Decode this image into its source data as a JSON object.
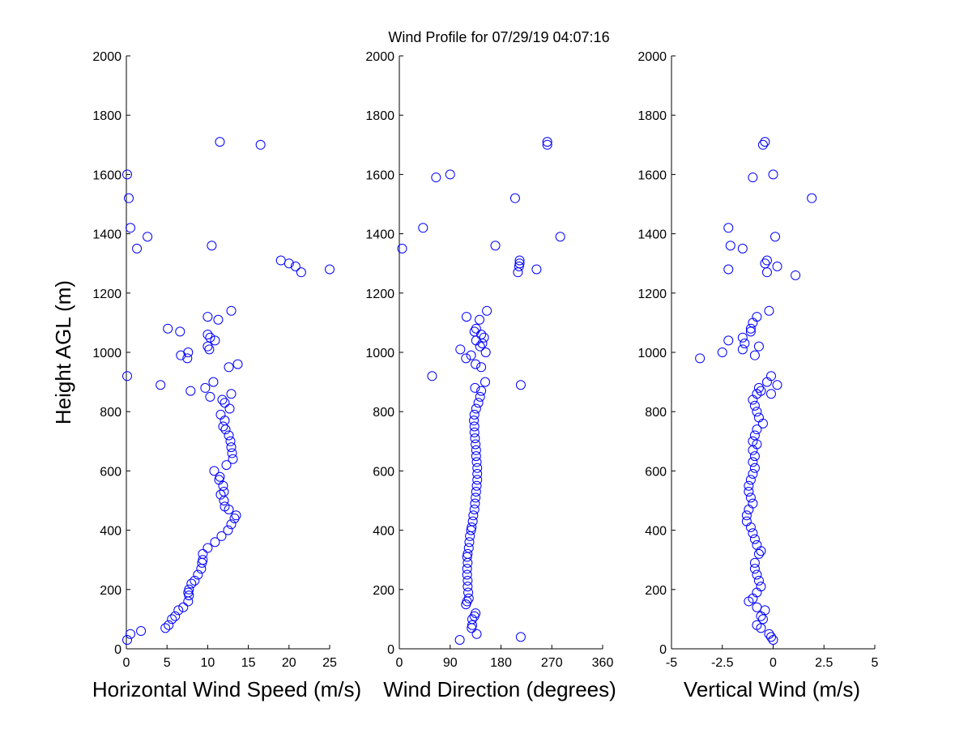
{
  "title": "Wind Profile for  07/29/19 04:07:16",
  "marker_color": "#0000ff",
  "axis_color": "#000000",
  "chart_data": [
    {
      "id": "speed",
      "type": "scatter",
      "xlabel": "Horizontal Wind Speed (m/s)",
      "ylabel": "Height AGL (m)",
      "xlim": [
        0,
        25
      ],
      "ylim": [
        0,
        2000
      ],
      "xticks": [
        0,
        5,
        10,
        15,
        20,
        25
      ],
      "xtick_labels": [
        "0",
        "5",
        "10",
        "15",
        "20",
        "25"
      ],
      "yticks": [
        0,
        200,
        400,
        600,
        800,
        1000,
        1200,
        1400,
        1600,
        1800,
        2000
      ],
      "ytick_labels": [
        "0",
        "200",
        "400",
        "600",
        "800",
        "1000",
        "1200",
        "1400",
        "1600",
        "1800",
        "2000"
      ],
      "points": [
        [
          0.1,
          30
        ],
        [
          0.5,
          50
        ],
        [
          1.8,
          60
        ],
        [
          4.8,
          70
        ],
        [
          5.2,
          80
        ],
        [
          5.6,
          100
        ],
        [
          6.0,
          110
        ],
        [
          6.4,
          130
        ],
        [
          7.0,
          140
        ],
        [
          7.6,
          160
        ],
        [
          7.7,
          180
        ],
        [
          7.6,
          190
        ],
        [
          7.7,
          200
        ],
        [
          8.0,
          220
        ],
        [
          8.4,
          230
        ],
        [
          8.8,
          250
        ],
        [
          9.2,
          270
        ],
        [
          9.3,
          290
        ],
        [
          9.4,
          300
        ],
        [
          9.4,
          320
        ],
        [
          10.0,
          340
        ],
        [
          10.9,
          360
        ],
        [
          11.7,
          380
        ],
        [
          12.5,
          400
        ],
        [
          12.9,
          420
        ],
        [
          13.3,
          440
        ],
        [
          13.5,
          450
        ],
        [
          12.6,
          470
        ],
        [
          12.1,
          480
        ],
        [
          12.0,
          500
        ],
        [
          11.6,
          520
        ],
        [
          12.0,
          530
        ],
        [
          11.9,
          550
        ],
        [
          11.4,
          570
        ],
        [
          11.5,
          580
        ],
        [
          10.8,
          600
        ],
        [
          12.3,
          620
        ],
        [
          13.1,
          640
        ],
        [
          13.0,
          660
        ],
        [
          12.9,
          680
        ],
        [
          12.8,
          700
        ],
        [
          12.6,
          720
        ],
        [
          12.2,
          740
        ],
        [
          11.9,
          750
        ],
        [
          12.1,
          770
        ],
        [
          11.6,
          790
        ],
        [
          12.7,
          810
        ],
        [
          12.1,
          830
        ],
        [
          11.8,
          840
        ],
        [
          10.3,
          850
        ],
        [
          12.9,
          860
        ],
        [
          7.9,
          870
        ],
        [
          9.7,
          880
        ],
        [
          10.7,
          900
        ],
        [
          0.1,
          920
        ],
        [
          4.2,
          890
        ],
        [
          12.6,
          950
        ],
        [
          13.7,
          960
        ],
        [
          6.7,
          990
        ],
        [
          7.5,
          980
        ],
        [
          7.6,
          1000
        ],
        [
          10.2,
          1010
        ],
        [
          10.0,
          1020
        ],
        [
          10.9,
          1040
        ],
        [
          10.0,
          1060
        ],
        [
          10.3,
          1050
        ],
        [
          6.6,
          1070
        ],
        [
          5.1,
          1080
        ],
        [
          11.3,
          1110
        ],
        [
          10.0,
          1120
        ],
        [
          12.9,
          1140
        ],
        [
          10.5,
          1360
        ],
        [
          1.3,
          1350
        ],
        [
          2.6,
          1390
        ],
        [
          0.5,
          1420
        ],
        [
          0.3,
          1520
        ],
        [
          0.1,
          1600
        ],
        [
          11.5,
          1710
        ],
        [
          16.5,
          1700
        ],
        [
          19.0,
          1310
        ],
        [
          20.0,
          1300
        ],
        [
          20.8,
          1290
        ],
        [
          21.5,
          1270
        ],
        [
          25.0,
          1280
        ]
      ]
    },
    {
      "id": "direction",
      "type": "scatter",
      "xlabel": "Wind Direction (degrees)",
      "xlim": [
        0,
        360
      ],
      "ylim": [
        0,
        2000
      ],
      "xticks": [
        0,
        90,
        180,
        270,
        360
      ],
      "xtick_labels": [
        "0",
        "90",
        "180",
        "270",
        "360"
      ],
      "yticks": [
        0,
        200,
        400,
        600,
        800,
        1000,
        1200,
        1400,
        1600,
        1800,
        2000
      ],
      "ytick_labels": [
        "0",
        "200",
        "400",
        "600",
        "800",
        "1000",
        "1200",
        "1400",
        "1600",
        "1800",
        "2000"
      ],
      "points": [
        [
          107,
          30
        ],
        [
          215,
          40
        ],
        [
          137,
          50
        ],
        [
          128,
          70
        ],
        [
          129,
          80
        ],
        [
          129,
          100
        ],
        [
          133,
          110
        ],
        [
          135,
          120
        ],
        [
          118,
          150
        ],
        [
          120,
          160
        ],
        [
          123,
          170
        ],
        [
          122,
          190
        ],
        [
          121,
          210
        ],
        [
          121,
          230
        ],
        [
          120,
          250
        ],
        [
          120,
          270
        ],
        [
          121,
          290
        ],
        [
          120,
          310
        ],
        [
          121,
          320
        ],
        [
          123,
          340
        ],
        [
          124,
          360
        ],
        [
          125,
          380
        ],
        [
          127,
          400
        ],
        [
          128,
          410
        ],
        [
          130,
          430
        ],
        [
          131,
          450
        ],
        [
          133,
          470
        ],
        [
          134,
          490
        ],
        [
          135,
          510
        ],
        [
          136,
          530
        ],
        [
          137,
          550
        ],
        [
          138,
          570
        ],
        [
          138,
          590
        ],
        [
          138,
          610
        ],
        [
          137,
          630
        ],
        [
          136,
          650
        ],
        [
          136,
          670
        ],
        [
          135,
          690
        ],
        [
          134,
          710
        ],
        [
          133,
          730
        ],
        [
          133,
          750
        ],
        [
          132,
          770
        ],
        [
          133,
          790
        ],
        [
          136,
          810
        ],
        [
          140,
          830
        ],
        [
          143,
          850
        ],
        [
          145,
          870
        ],
        [
          134,
          880
        ],
        [
          152,
          900
        ],
        [
          58,
          920
        ],
        [
          215,
          890
        ],
        [
          145,
          950
        ],
        [
          135,
          960
        ],
        [
          118,
          980
        ],
        [
          153,
          1000
        ],
        [
          108,
          1010
        ],
        [
          127,
          990
        ],
        [
          143,
          1020
        ],
        [
          147,
          1030
        ],
        [
          136,
          1040
        ],
        [
          150,
          1050
        ],
        [
          145,
          1060
        ],
        [
          133,
          1070
        ],
        [
          136,
          1080
        ],
        [
          142,
          1110
        ],
        [
          119,
          1120
        ],
        [
          155,
          1140
        ],
        [
          170,
          1360
        ],
        [
          5,
          1350
        ],
        [
          42,
          1420
        ],
        [
          285,
          1390
        ],
        [
          65,
          1590
        ],
        [
          90,
          1600
        ],
        [
          205,
          1520
        ],
        [
          262,
          1700
        ],
        [
          262,
          1710
        ],
        [
          243,
          1280
        ],
        [
          210,
          1270
        ],
        [
          212,
          1290
        ],
        [
          213,
          1300
        ],
        [
          213,
          1310
        ]
      ]
    },
    {
      "id": "vertical",
      "type": "scatter",
      "xlabel": "Vertical Wind (m/s)",
      "xlim": [
        -5,
        5
      ],
      "ylim": [
        0,
        2000
      ],
      "xticks": [
        -5,
        -2.5,
        0,
        2.5,
        5
      ],
      "xtick_labels": [
        "-5",
        "-2.5",
        "0",
        "2.5",
        "5"
      ],
      "yticks": [
        0,
        200,
        400,
        600,
        800,
        1000,
        1200,
        1400,
        1600,
        1800,
        2000
      ],
      "ytick_labels": [
        "0",
        "200",
        "400",
        "600",
        "800",
        "1000",
        "1200",
        "1400",
        "1600",
        "1800",
        "2000"
      ],
      "points": [
        [
          0,
          30
        ],
        [
          -0.1,
          40
        ],
        [
          -0.2,
          50
        ],
        [
          -0.6,
          70
        ],
        [
          -0.8,
          80
        ],
        [
          -0.5,
          100
        ],
        [
          -0.6,
          110
        ],
        [
          -0.4,
          130
        ],
        [
          -0.8,
          140
        ],
        [
          -1.2,
          160
        ],
        [
          -1.0,
          170
        ],
        [
          -0.8,
          190
        ],
        [
          -0.6,
          210
        ],
        [
          -0.7,
          230
        ],
        [
          -0.8,
          250
        ],
        [
          -0.9,
          270
        ],
        [
          -0.9,
          290
        ],
        [
          -0.7,
          320
        ],
        [
          -0.6,
          330
        ],
        [
          -0.8,
          350
        ],
        [
          -0.9,
          370
        ],
        [
          -1.0,
          390
        ],
        [
          -1.1,
          410
        ],
        [
          -1.3,
          430
        ],
        [
          -1.3,
          450
        ],
        [
          -1.2,
          470
        ],
        [
          -1.0,
          490
        ],
        [
          -1.1,
          510
        ],
        [
          -1.2,
          530
        ],
        [
          -1.2,
          550
        ],
        [
          -1.1,
          570
        ],
        [
          -1.0,
          590
        ],
        [
          -0.9,
          610
        ],
        [
          -1.0,
          630
        ],
        [
          -0.9,
          650
        ],
        [
          -1.0,
          670
        ],
        [
          -0.8,
          690
        ],
        [
          -1.0,
          700
        ],
        [
          -0.9,
          720
        ],
        [
          -0.8,
          740
        ],
        [
          -0.5,
          760
        ],
        [
          -0.7,
          780
        ],
        [
          -0.8,
          800
        ],
        [
          -0.9,
          820
        ],
        [
          -1.0,
          840
        ],
        [
          -0.8,
          860
        ],
        [
          -0.6,
          870
        ],
        [
          -0.7,
          880
        ],
        [
          -0.3,
          900
        ],
        [
          -0.1,
          920
        ],
        [
          0.2,
          890
        ],
        [
          -0.1,
          860
        ],
        [
          -3.6,
          980
        ],
        [
          -2.5,
          1000
        ],
        [
          -1.5,
          1010
        ],
        [
          -1.4,
          1030
        ],
        [
          -1.5,
          1050
        ],
        [
          -2.2,
          1040
        ],
        [
          -0.9,
          990
        ],
        [
          -0.7,
          1020
        ],
        [
          -1.1,
          1070
        ],
        [
          -1.1,
          1080
        ],
        [
          -1.0,
          1100
        ],
        [
          -0.8,
          1120
        ],
        [
          -0.2,
          1140
        ],
        [
          -1.5,
          1350
        ],
        [
          -2.1,
          1360
        ],
        [
          -2.2,
          1420
        ],
        [
          -2.2,
          1280
        ],
        [
          -0.4,
          1300
        ],
        [
          -0.3,
          1310
        ],
        [
          -0.3,
          1270
        ],
        [
          0.1,
          1390
        ],
        [
          0.2,
          1290
        ],
        [
          1.1,
          1260
        ],
        [
          1.9,
          1520
        ],
        [
          -1.0,
          1590
        ],
        [
          0,
          1600
        ],
        [
          -0.5,
          1700
        ],
        [
          -0.4,
          1710
        ]
      ]
    }
  ]
}
